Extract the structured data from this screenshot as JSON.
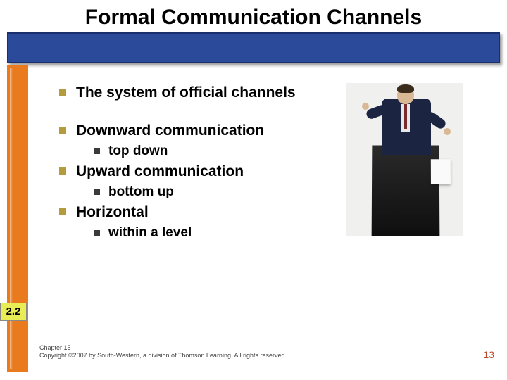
{
  "title": "Formal Communication Channels",
  "bullets": [
    {
      "text": "The system of official channels",
      "sub": null
    },
    {
      "text": "Downward communication",
      "sub": "top down"
    },
    {
      "text": "Upward communication",
      "sub": "bottom up"
    },
    {
      "text": "Horizontal",
      "sub": "within a level"
    }
  ],
  "badge": "2.2",
  "footer_line1": "Chapter 15",
  "footer_line2": "Copyright ©2007 by South-Western, a division of Thomson Learning.  All rights reserved",
  "page_number": "13",
  "colors": {
    "title_band": "#2c4a9a",
    "orange_strip": "#e97b1e",
    "bullet_l1": "#b49b3d",
    "bullet_l2": "#3a3a3a",
    "badge_bg": "#e9ed55",
    "page_num": "#b84a2a"
  }
}
